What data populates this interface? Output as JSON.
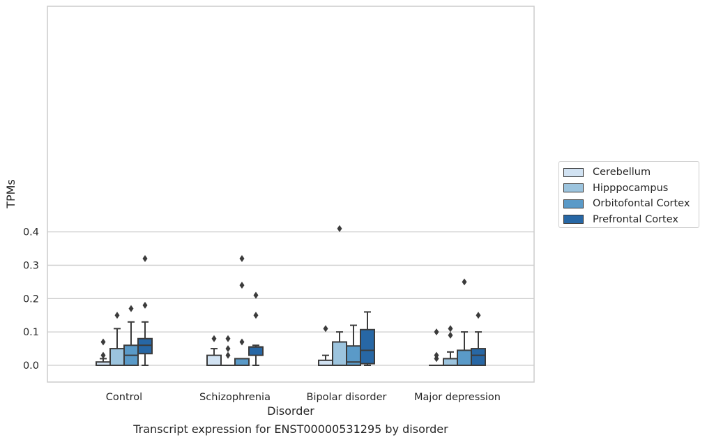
{
  "chart_data": {
    "type": "box",
    "xlabel": "Disorder",
    "ylabel": "TPMs",
    "caption": "Transcript expression for ENST00000531295 by disorder",
    "ylim": [
      -0.02,
      0.43
    ],
    "yticks": [
      "0.0",
      "0.1",
      "0.2",
      "0.3",
      "0.4"
    ],
    "categories": [
      "Control",
      "Schizophrenia",
      "Bipolar disorder",
      "Major depression"
    ],
    "grid": "horizontal",
    "legend_position": "right",
    "series": [
      {
        "name": "Cerebellum",
        "color": "#d1e2f2",
        "boxes": [
          {
            "q1": 0.0,
            "median": 0.0,
            "q3": 0.01,
            "whislo": 0.0,
            "whishi": 0.02,
            "fliers": [
              0.03,
              0.07
            ]
          },
          {
            "q1": 0.0,
            "median": 0.0,
            "q3": 0.03,
            "whislo": 0.0,
            "whishi": 0.05,
            "fliers": [
              0.08
            ]
          },
          {
            "q1": 0.0,
            "median": 0.0,
            "q3": 0.015,
            "whislo": 0.0,
            "whishi": 0.03,
            "fliers": [
              0.11
            ]
          },
          {
            "q1": 0.0,
            "median": 0.0,
            "q3": 0.0,
            "whislo": 0.0,
            "whishi": 0.0,
            "fliers": [
              0.02,
              0.03,
              0.1
            ]
          }
        ]
      },
      {
        "name": "Hipppocampus",
        "color": "#9cc4de",
        "boxes": [
          {
            "q1": 0.0,
            "median": 0.0,
            "q3": 0.05,
            "whislo": 0.0,
            "whishi": 0.11,
            "fliers": [
              0.15
            ]
          },
          {
            "q1": 0.0,
            "median": 0.0,
            "q3": 0.0,
            "whislo": 0.0,
            "whishi": 0.0,
            "fliers": [
              0.03,
              0.05,
              0.08
            ]
          },
          {
            "q1": 0.0,
            "median": 0.0,
            "q3": 0.07,
            "whislo": 0.0,
            "whishi": 0.1,
            "fliers": [
              0.41
            ]
          },
          {
            "q1": 0.0,
            "median": 0.0,
            "q3": 0.02,
            "whislo": 0.0,
            "whishi": 0.04,
            "fliers": [
              0.09,
              0.11
            ]
          }
        ]
      },
      {
        "name": "Orbitofontal Cortex",
        "color": "#5a9ac8",
        "boxes": [
          {
            "q1": 0.0,
            "median": 0.03,
            "q3": 0.06,
            "whislo": 0.0,
            "whishi": 0.13,
            "fliers": [
              0.17
            ]
          },
          {
            "q1": 0.0,
            "median": 0.0,
            "q3": 0.02,
            "whislo": 0.0,
            "whishi": 0.02,
            "fliers": [
              0.07,
              0.24,
              0.32
            ]
          },
          {
            "q1": 0.0,
            "median": 0.01,
            "q3": 0.058,
            "whislo": 0.0,
            "whishi": 0.12,
            "fliers": []
          },
          {
            "q1": 0.0,
            "median": 0.0,
            "q3": 0.045,
            "whislo": 0.0,
            "whishi": 0.1,
            "fliers": [
              0.25
            ]
          }
        ]
      },
      {
        "name": "Prefrontal Cortex",
        "color": "#2767a5",
        "boxes": [
          {
            "q1": 0.035,
            "median": 0.06,
            "q3": 0.08,
            "whislo": 0.0,
            "whishi": 0.13,
            "fliers": [
              0.18,
              0.32
            ]
          },
          {
            "q1": 0.03,
            "median": 0.055,
            "q3": 0.055,
            "whislo": 0.0,
            "whishi": 0.06,
            "fliers": [
              0.15,
              0.21
            ]
          },
          {
            "q1": 0.005,
            "median": 0.045,
            "q3": 0.107,
            "whislo": 0.0,
            "whishi": 0.16,
            "fliers": []
          },
          {
            "q1": 0.0,
            "median": 0.03,
            "q3": 0.05,
            "whislo": 0.0,
            "whishi": 0.1,
            "fliers": [
              0.15
            ]
          }
        ]
      }
    ]
  }
}
